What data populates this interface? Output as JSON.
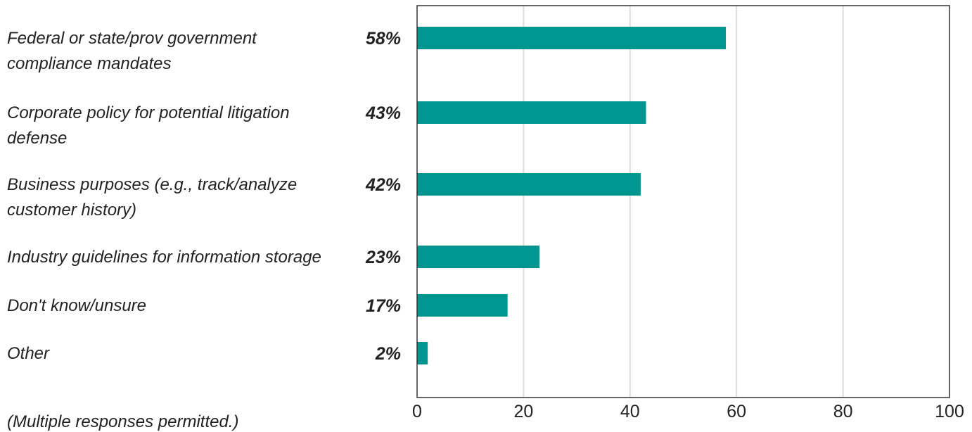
{
  "chart_data": {
    "type": "bar",
    "orientation": "horizontal",
    "categories": [
      [
        "Federal or state/prov government",
        "compliance mandates"
      ],
      [
        "Corporate policy for potential litigation",
        "defense"
      ],
      [
        "Business purposes (e.g., track/analyze",
        "customer history)"
      ],
      [
        "Industry guidelines for information storage"
      ],
      [
        "Don't know/unsure"
      ],
      [
        "Other"
      ]
    ],
    "values": [
      58,
      43,
      42,
      23,
      17,
      2
    ],
    "data_labels": [
      "58%",
      "43%",
      "42%",
      "23%",
      "17%",
      "2%"
    ],
    "xlim": [
      0,
      100
    ],
    "x_ticks": [
      0,
      20,
      40,
      60,
      80,
      100
    ],
    "x_tick_labels": [
      "0",
      "20",
      "40",
      "60",
      "80",
      "100"
    ],
    "grid": "vertical",
    "legend": "none",
    "footnote": "(Multiple responses permitted.)",
    "colors": {
      "bar": "#00968f",
      "grid": "#dddddd",
      "frame": "#333333",
      "text": "#222222"
    }
  }
}
